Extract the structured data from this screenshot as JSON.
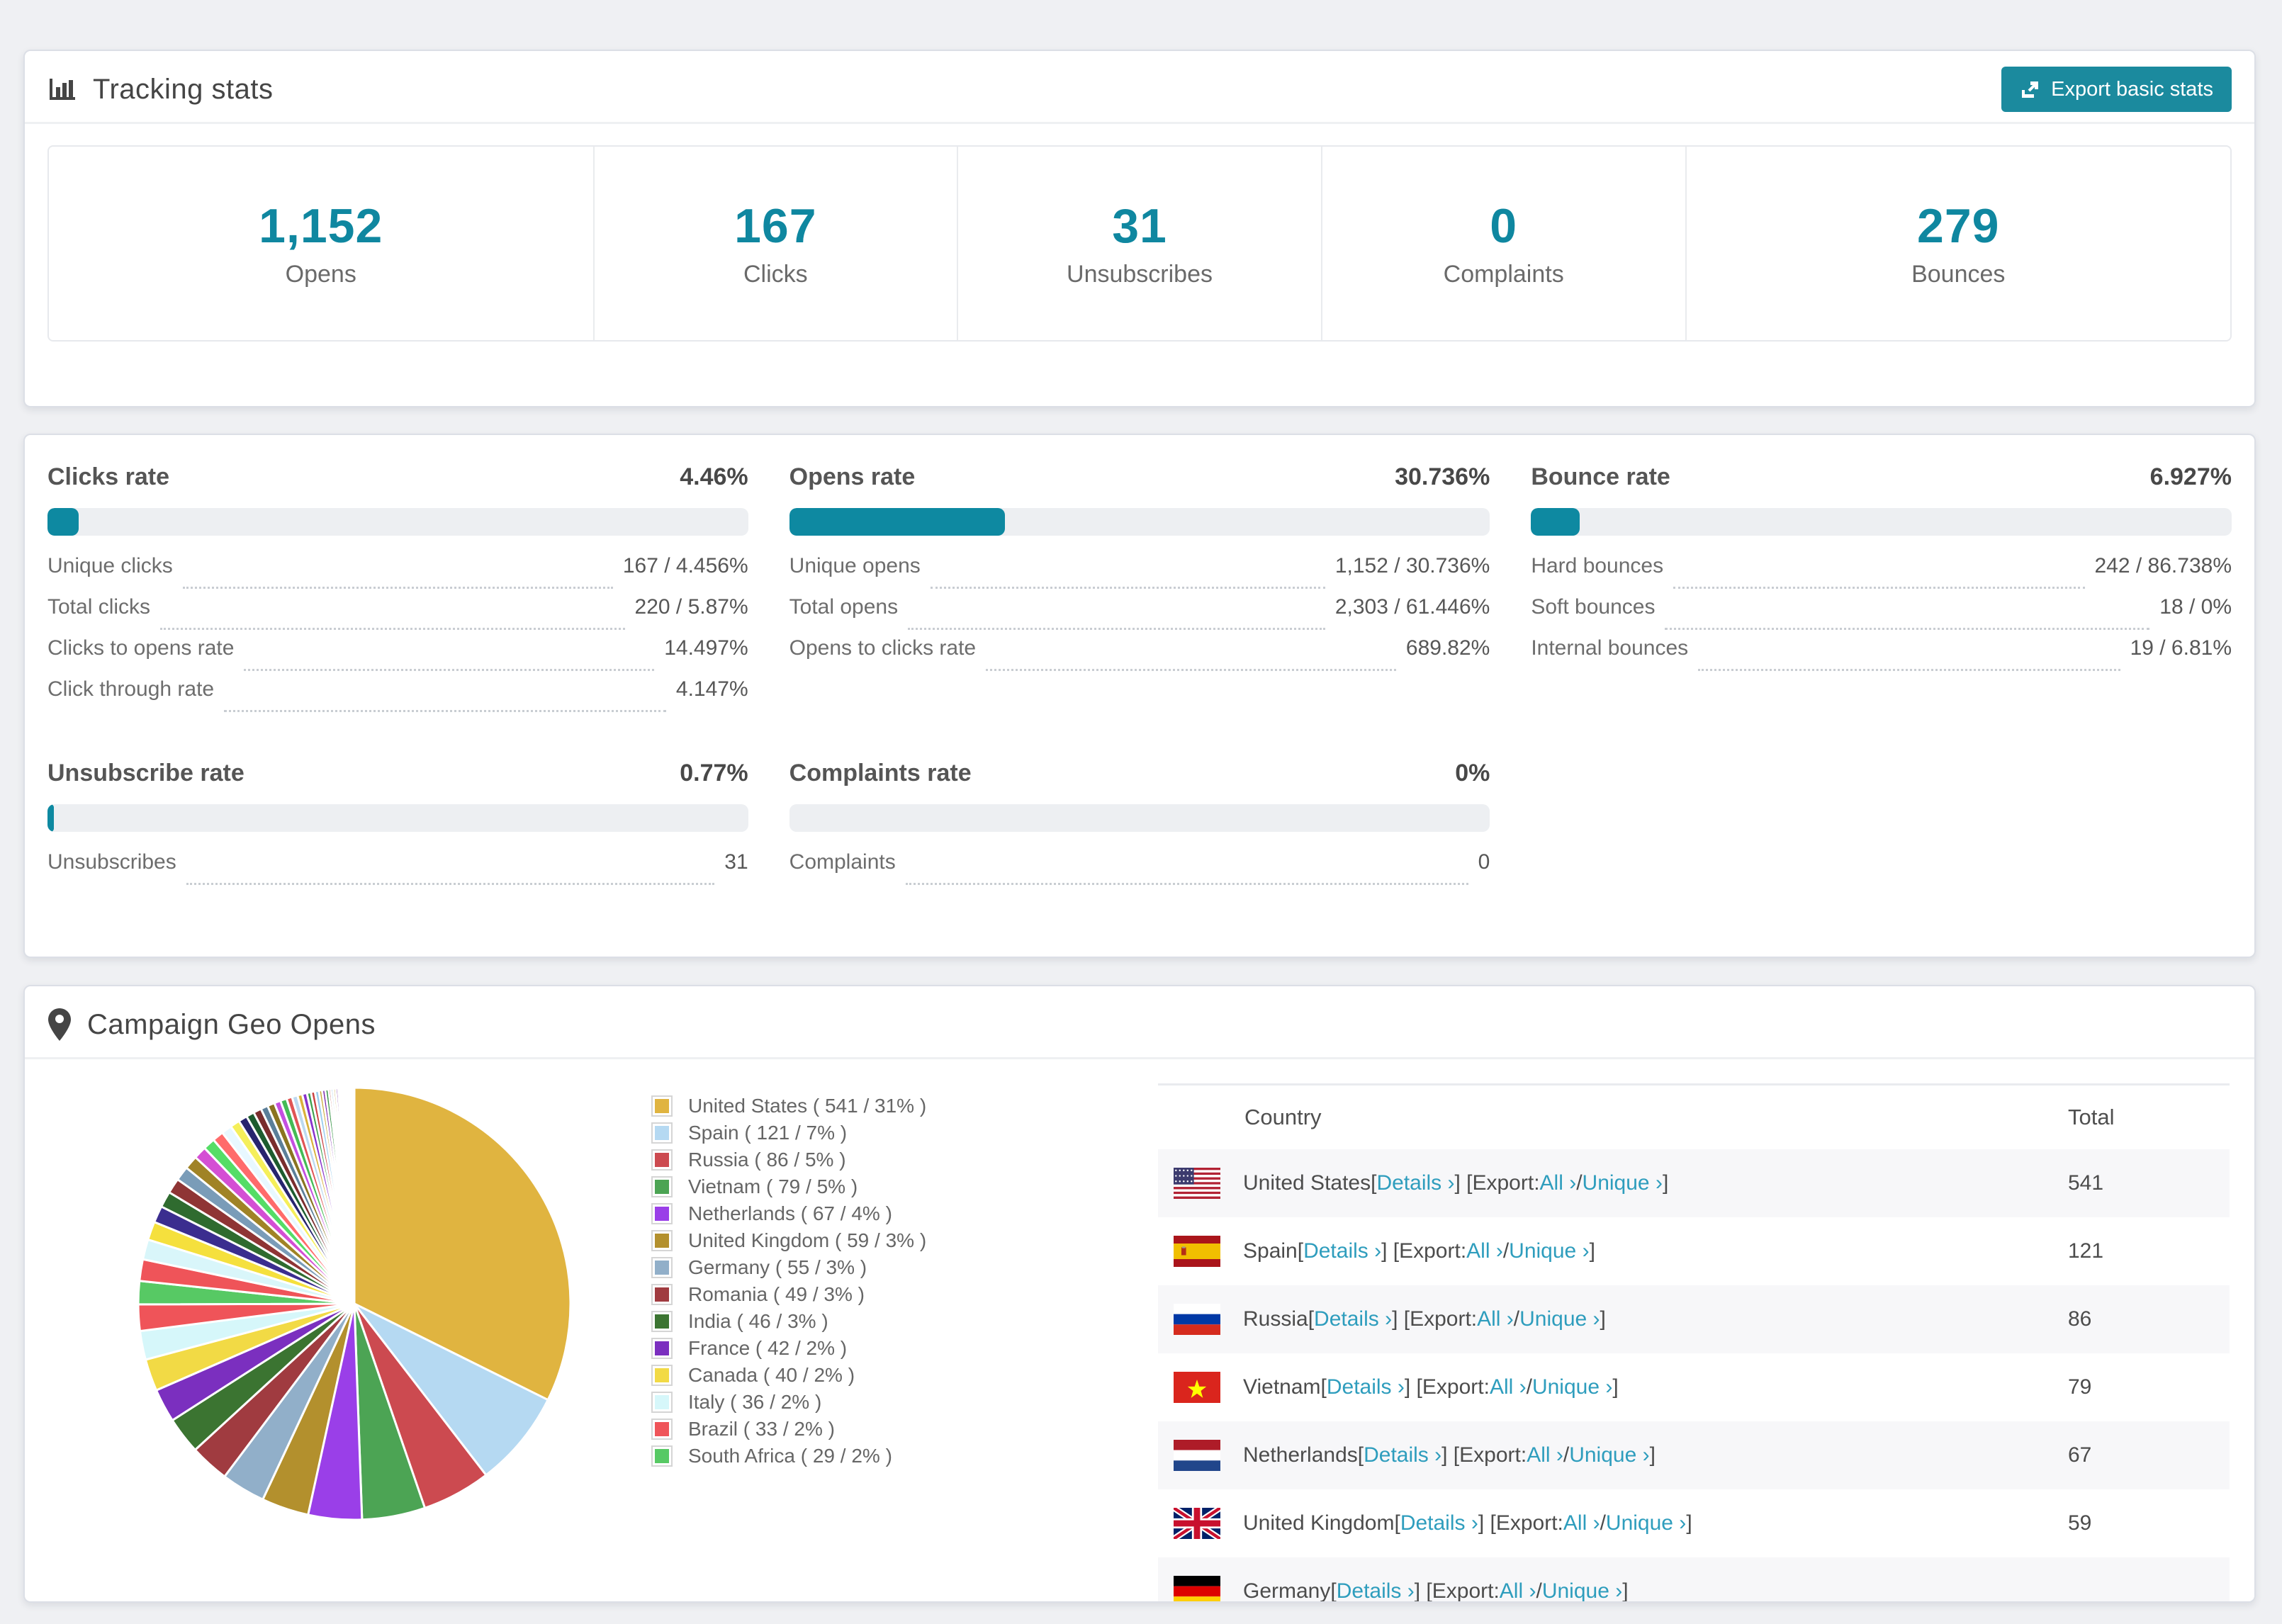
{
  "colors": {
    "accent_teal": "#0F87A0",
    "bar_teal": "#0E89A1",
    "button_teal": "#1B8A9E",
    "link_teal": "#2E9DBD"
  },
  "tracking": {
    "title": "Tracking stats",
    "export_label": "Export basic stats",
    "stats": [
      {
        "value": "1,152",
        "label": "Opens"
      },
      {
        "value": "167",
        "label": "Clicks"
      },
      {
        "value": "31",
        "label": "Unsubscribes"
      },
      {
        "value": "0",
        "label": "Complaints"
      },
      {
        "value": "279",
        "label": "Bounces"
      }
    ]
  },
  "rates": {
    "sections": [
      {
        "title": "Clicks rate",
        "percent": "4.46%",
        "bar_pct": 4.46,
        "rows": [
          {
            "label": "Unique clicks",
            "value": "167 / 4.456%"
          },
          {
            "label": "Total clicks",
            "value": "220 / 5.87%"
          },
          {
            "label": "Clicks to opens rate",
            "value": "14.497%"
          },
          {
            "label": "Click through rate",
            "value": "4.147%"
          }
        ]
      },
      {
        "title": "Opens rate",
        "percent": "30.736%",
        "bar_pct": 30.736,
        "rows": [
          {
            "label": "Unique opens",
            "value": "1,152 / 30.736%"
          },
          {
            "label": "Total opens",
            "value": "2,303 / 61.446%"
          },
          {
            "label": "Opens to clicks rate",
            "value": "689.82%"
          }
        ]
      },
      {
        "title": "Bounce rate",
        "percent": "6.927%",
        "bar_pct": 6.927,
        "rows": [
          {
            "label": "Hard bounces",
            "value": "242 / 86.738%"
          },
          {
            "label": "Soft bounces",
            "value": "18 / 0%"
          },
          {
            "label": "Internal bounces",
            "value": "19 / 6.81%"
          }
        ]
      },
      {
        "title": "Unsubscribe rate",
        "percent": "0.77%",
        "bar_pct": 0.77,
        "rows": [
          {
            "label": "Unsubscribes",
            "value": "31"
          }
        ]
      },
      {
        "title": "Complaints rate",
        "percent": "0%",
        "bar_pct": 0,
        "rows": [
          {
            "label": "Complaints",
            "value": "0"
          }
        ]
      }
    ]
  },
  "geo": {
    "title": "Campaign Geo Opens",
    "legend": [
      {
        "label": "United States ( 541 / 31% )",
        "color": "#E0B440"
      },
      {
        "label": "Spain ( 121 / 7% )",
        "color": "#B5D9F2"
      },
      {
        "label": "Russia ( 86 / 5% )",
        "color": "#CC4A50"
      },
      {
        "label": "Vietnam ( 79 / 5% )",
        "color": "#4CA454"
      },
      {
        "label": "Netherlands ( 67 / 4% )",
        "color": "#9A3FE8"
      },
      {
        "label": "United Kingdom ( 59 / 3% )",
        "color": "#B3902D"
      },
      {
        "label": "Germany ( 55 / 3% )",
        "color": "#91AFC9"
      },
      {
        "label": "Romania ( 49 / 3% )",
        "color": "#A03B40"
      },
      {
        "label": "India ( 46 / 3% )",
        "color": "#3B7431"
      },
      {
        "label": "France ( 42 / 2% )",
        "color": "#7B2FBF"
      },
      {
        "label": "Canada ( 40 / 2% )",
        "color": "#F2DA45"
      },
      {
        "label": "Italy ( 36 / 2% )",
        "color": "#D6F7FA"
      },
      {
        "label": "Brazil ( 33 / 2% )",
        "color": "#EF5459"
      },
      {
        "label": "South Africa ( 29 / 2% )",
        "color": "#57C964"
      }
    ],
    "table": {
      "columns": [
        "Country",
        "Total"
      ],
      "details_label": "Details ›",
      "export_prefix": "[Export: ",
      "export_all": "All ›",
      "export_sep": " / ",
      "export_unique": "Unique ›",
      "rows": [
        {
          "country": "United States",
          "flag": "us",
          "total": "541"
        },
        {
          "country": "Spain",
          "flag": "es",
          "total": "121"
        },
        {
          "country": "Russia",
          "flag": "ru",
          "total": "86"
        },
        {
          "country": "Vietnam",
          "flag": "vn",
          "total": "79"
        },
        {
          "country": "Netherlands",
          "flag": "nl",
          "total": "67"
        },
        {
          "country": "United Kingdom",
          "flag": "gb",
          "total": "59"
        },
        {
          "country": "Germany",
          "flag": "de",
          "total": ""
        }
      ]
    }
  },
  "chart_data": {
    "type": "pie",
    "title": "Campaign Geo Opens",
    "legend_position": "right",
    "labels": [
      "United States",
      "Spain",
      "Russia",
      "Vietnam",
      "Netherlands",
      "United Kingdom",
      "Germany",
      "Romania",
      "India",
      "France",
      "Canada",
      "Italy",
      "Brazil",
      "South Africa"
    ],
    "values": [
      541,
      121,
      86,
      79,
      67,
      59,
      55,
      49,
      46,
      42,
      40,
      36,
      33,
      29
    ],
    "percents": [
      31,
      7,
      5,
      5,
      4,
      3,
      3,
      3,
      3,
      2,
      2,
      2,
      2,
      2
    ],
    "colors": [
      "#E0B440",
      "#B5D9F2",
      "#CC4A50",
      "#4CA454",
      "#9A3FE8",
      "#B3902D",
      "#91AFC9",
      "#A03B40",
      "#3B7431",
      "#7B2FBF",
      "#F2DA45",
      "#D6F7FA",
      "#EF5459",
      "#57C964"
    ],
    "tail": {
      "note": "long tail of smaller unlabeled countries, drawn clockwise after South Africa",
      "values": [
        27,
        25,
        23,
        21,
        20,
        19,
        18,
        17,
        16,
        15,
        14,
        13,
        12,
        11,
        10,
        10,
        9,
        9,
        8,
        8,
        7,
        7,
        6,
        6,
        5,
        5,
        5,
        4,
        4,
        4,
        3,
        3,
        3,
        3,
        2,
        2,
        2,
        2,
        2,
        2,
        1,
        1,
        1,
        1,
        1,
        1,
        1,
        1
      ],
      "colors": [
        "#EF5459",
        "#D9F6FA",
        "#F5E03D",
        "#3B2D8F",
        "#2F6B2F",
        "#8F3535",
        "#7A9CB8",
        "#A08326",
        "#D44FD4",
        "#55DD66",
        "#FF6B6B",
        "#E8F8FF",
        "#F5EF5A",
        "#27246E",
        "#1D5C2F",
        "#7A2D2D",
        "#5B7F99",
        "#8A7420",
        "#C44FE0",
        "#44BB55",
        "#E05555",
        "#BCD9F0",
        "#D9B13B",
        "#8833CC",
        "#3DA04D",
        "#CC4444",
        "#99CCEE",
        "#C9A832",
        "#7722AA",
        "#2D8F3D",
        "#BB3333",
        "#88BBDD",
        "#B89A28",
        "#661199",
        "#1E7A2E",
        "#AA2222",
        "#77AACC",
        "#A78922",
        "#550088",
        "#0F6B1F",
        "#E3B53D",
        "#9B3FE8",
        "#4BA353",
        "#CC4B4E",
        "#B8D9F2",
        "#F2D843",
        "#7B2FBF",
        "#57C964"
      ]
    }
  }
}
